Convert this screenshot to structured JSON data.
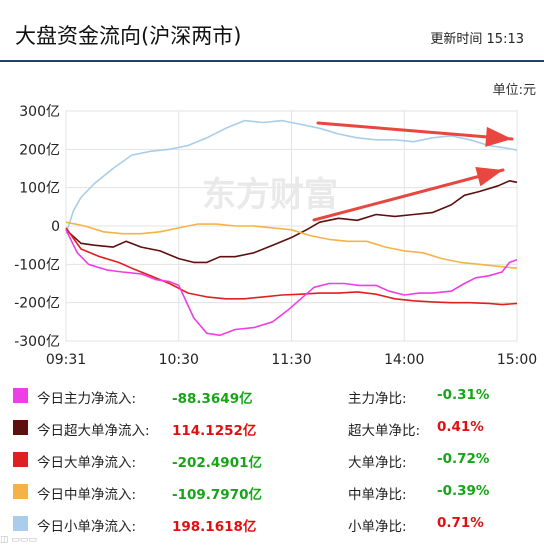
{
  "header": {
    "title": "大盘资金流向(沪深两市)",
    "update_label": "更新时间",
    "update_time": "15:13"
  },
  "unit": "单位:元",
  "watermark": "东方财富",
  "chart_data": {
    "type": "line",
    "y_ticks": [
      "300亿",
      "200亿",
      "100亿",
      "0",
      "-100亿",
      "-200亿",
      "-300亿"
    ],
    "x_ticks": [
      "09:31",
      "10:30",
      "11:30",
      "14:00",
      "15:00"
    ],
    "ylim": [
      -300,
      300
    ],
    "x_range": [
      0,
      240
    ],
    "series": [
      {
        "name": "今日小单净流入",
        "color": "#a9cdea",
        "points": [
          [
            0,
            -20
          ],
          [
            4,
            40
          ],
          [
            8,
            75
          ],
          [
            15,
            110
          ],
          [
            25,
            150
          ],
          [
            35,
            185
          ],
          [
            45,
            195
          ],
          [
            55,
            200
          ],
          [
            65,
            210
          ],
          [
            75,
            230
          ],
          [
            85,
            255
          ],
          [
            95,
            275
          ],
          [
            105,
            270
          ],
          [
            115,
            275
          ],
          [
            125,
            265
          ],
          [
            135,
            255
          ],
          [
            145,
            240
          ],
          [
            155,
            230
          ],
          [
            165,
            225
          ],
          [
            175,
            225
          ],
          [
            185,
            220
          ],
          [
            195,
            230
          ],
          [
            205,
            235
          ],
          [
            215,
            225
          ],
          [
            225,
            210
          ],
          [
            232,
            205
          ],
          [
            240,
            198
          ]
        ]
      },
      {
        "name": "今日超大单净流入",
        "color": "#5e0f0f",
        "points": [
          [
            0,
            -10
          ],
          [
            8,
            -45
          ],
          [
            15,
            -50
          ],
          [
            25,
            -55
          ],
          [
            32,
            -40
          ],
          [
            40,
            -55
          ],
          [
            50,
            -65
          ],
          [
            60,
            -85
          ],
          [
            68,
            -95
          ],
          [
            75,
            -95
          ],
          [
            82,
            -80
          ],
          [
            90,
            -80
          ],
          [
            100,
            -70
          ],
          [
            110,
            -50
          ],
          [
            120,
            -30
          ],
          [
            128,
            -10
          ],
          [
            135,
            10
          ],
          [
            145,
            20
          ],
          [
            155,
            15
          ],
          [
            165,
            30
          ],
          [
            175,
            25
          ],
          [
            185,
            30
          ],
          [
            195,
            35
          ],
          [
            205,
            55
          ],
          [
            212,
            80
          ],
          [
            220,
            90
          ],
          [
            230,
            105
          ],
          [
            236,
            118
          ],
          [
            240,
            114
          ]
        ]
      },
      {
        "name": "今日中单净流入",
        "color": "#f5b347",
        "points": [
          [
            0,
            10
          ],
          [
            10,
            0
          ],
          [
            20,
            -15
          ],
          [
            30,
            -20
          ],
          [
            40,
            -20
          ],
          [
            50,
            -15
          ],
          [
            60,
            -5
          ],
          [
            70,
            5
          ],
          [
            80,
            5
          ],
          [
            90,
            0
          ],
          [
            100,
            0
          ],
          [
            110,
            -5
          ],
          [
            120,
            -10
          ],
          [
            130,
            -25
          ],
          [
            140,
            -35
          ],
          [
            150,
            -40
          ],
          [
            160,
            -40
          ],
          [
            170,
            -55
          ],
          [
            180,
            -65
          ],
          [
            190,
            -70
          ],
          [
            200,
            -85
          ],
          [
            210,
            -95
          ],
          [
            220,
            -100
          ],
          [
            230,
            -105
          ],
          [
            240,
            -110
          ]
        ]
      },
      {
        "name": "今日大单净流入",
        "color": "#e02020",
        "points": [
          [
            0,
            -5
          ],
          [
            8,
            -60
          ],
          [
            18,
            -80
          ],
          [
            28,
            -95
          ],
          [
            35,
            -110
          ],
          [
            45,
            -130
          ],
          [
            55,
            -150
          ],
          [
            65,
            -175
          ],
          [
            75,
            -185
          ],
          [
            85,
            -190
          ],
          [
            95,
            -190
          ],
          [
            105,
            -185
          ],
          [
            115,
            -180
          ],
          [
            125,
            -178
          ],
          [
            135,
            -175
          ],
          [
            145,
            -175
          ],
          [
            155,
            -172
          ],
          [
            165,
            -178
          ],
          [
            175,
            -190
          ],
          [
            185,
            -195
          ],
          [
            195,
            -198
          ],
          [
            205,
            -200
          ],
          [
            215,
            -200
          ],
          [
            225,
            -202
          ],
          [
            232,
            -205
          ],
          [
            240,
            -202
          ]
        ]
      },
      {
        "name": "今日主力净流入",
        "color": "#ee3ee6",
        "points": [
          [
            0,
            -10
          ],
          [
            6,
            -70
          ],
          [
            12,
            -100
          ],
          [
            22,
            -115
          ],
          [
            30,
            -120
          ],
          [
            40,
            -125
          ],
          [
            48,
            -140
          ],
          [
            55,
            -145
          ],
          [
            60,
            -155
          ],
          [
            68,
            -240
          ],
          [
            75,
            -280
          ],
          [
            82,
            -285
          ],
          [
            90,
            -270
          ],
          [
            100,
            -265
          ],
          [
            110,
            -250
          ],
          [
            118,
            -220
          ],
          [
            125,
            -190
          ],
          [
            132,
            -160
          ],
          [
            140,
            -150
          ],
          [
            148,
            -150
          ],
          [
            156,
            -155
          ],
          [
            165,
            -155
          ],
          [
            172,
            -170
          ],
          [
            180,
            -180
          ],
          [
            188,
            -175
          ],
          [
            195,
            -175
          ],
          [
            205,
            -170
          ],
          [
            212,
            -150
          ],
          [
            218,
            -135
          ],
          [
            225,
            -130
          ],
          [
            232,
            -120
          ],
          [
            236,
            -95
          ],
          [
            240,
            -88
          ]
        ]
      }
    ]
  },
  "legend": [
    {
      "label": "今日主力净流入:",
      "value": "-88.3649亿",
      "ratio_label": "主力净比:",
      "ratio": "-0.31%",
      "color": "#ee3ee6",
      "sign": "neg",
      "ratio_sign": "neg"
    },
    {
      "label": "今日超大单净流入:",
      "value": "114.1252亿",
      "ratio_label": "超大单净比:",
      "ratio": "0.41%",
      "color": "#5e0f0f",
      "sign": "pos",
      "ratio_sign": "pos"
    },
    {
      "label": "今日大单净流入:",
      "value": "-202.4901亿",
      "ratio_label": "大单净比:",
      "ratio": "-0.72%",
      "color": "#e02020",
      "sign": "neg",
      "ratio_sign": "neg"
    },
    {
      "label": "今日中单净流入:",
      "value": "-109.7970亿",
      "ratio_label": "中单净比:",
      "ratio": "-0.39%",
      "color": "#f5b347",
      "sign": "neg",
      "ratio_sign": "neg"
    },
    {
      "label": "今日小单净流入:",
      "value": "198.1618亿",
      "ratio_label": "小单净比:",
      "ratio": "0.71%",
      "color": "#a9cdea",
      "sign": "pos",
      "ratio_sign": "pos"
    }
  ]
}
